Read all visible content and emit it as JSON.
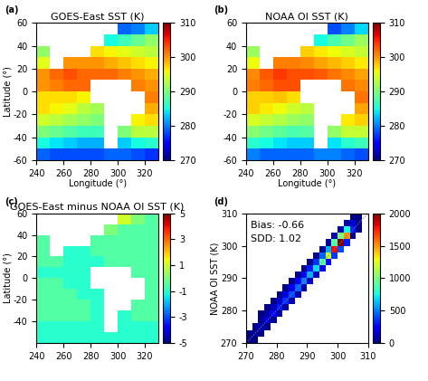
{
  "chart_data": [
    {
      "type": "heatmap",
      "panel_label": "(a)",
      "title": "GOES-East SST (K)",
      "x_label": "Longitude (°)",
      "y_label": "Latitude (°)",
      "xlim": [
        240,
        330
      ],
      "ylim": [
        -60,
        60
      ],
      "xticks": [
        240,
        260,
        280,
        300,
        320
      ],
      "yticks": [
        -60,
        -40,
        -20,
        0,
        20,
        40,
        60
      ],
      "tick_labels": true,
      "x_edges": [
        240,
        250,
        260,
        270,
        280,
        290,
        300,
        310,
        320,
        330
      ],
      "y_edges": [
        60,
        50,
        40,
        30,
        20,
        10,
        0,
        -10,
        -20,
        -30,
        -40,
        -50,
        -60
      ],
      "cells": [
        [
          null,
          null,
          null,
          null,
          null,
          null,
          279,
          280,
          283
        ],
        [
          null,
          null,
          null,
          null,
          null,
          285,
          287,
          289,
          291
        ],
        [
          291,
          null,
          null,
          null,
          297,
          296,
          295,
          294,
          293
        ],
        [
          295,
          null,
          300,
          300,
          300,
          299,
          298,
          297,
          296
        ],
        [
          300,
          302,
          303,
          302,
          302,
          302,
          301,
          300,
          299
        ],
        [
          300,
          301,
          302,
          302,
          null,
          null,
          null,
          301,
          300
        ],
        [
          297,
          297,
          297,
          296,
          null,
          null,
          null,
          null,
          301
        ],
        [
          297,
          296,
          295,
          293,
          292,
          null,
          null,
          null,
          299
        ],
        [
          294,
          293,
          292,
          291,
          290,
          null,
          null,
          296,
          297
        ],
        [
          290,
          289,
          288,
          287,
          287,
          null,
          290,
          293,
          293
        ],
        [
          285,
          284,
          283,
          282,
          282,
          null,
          283,
          285,
          286
        ],
        [
          279,
          278,
          278,
          278,
          278,
          279,
          279,
          278,
          277
        ]
      ],
      "colorbar_range": [
        270,
        310
      ],
      "colorbar_ticks": [
        270,
        280,
        290,
        300,
        310
      ]
    },
    {
      "type": "heatmap",
      "panel_label": "(b)",
      "title": "NOAA OI SST (K)",
      "x_label": "Longitude (°)",
      "xlim": [
        240,
        330
      ],
      "ylim": [
        -60,
        60
      ],
      "xticks": [
        240,
        260,
        280,
        300,
        320
      ],
      "yticks": [
        -60,
        -40,
        -20,
        0,
        20,
        40,
        60
      ],
      "tick_labels": true,
      "x_edges": [
        240,
        250,
        260,
        270,
        280,
        290,
        300,
        310,
        320,
        330
      ],
      "y_edges": [
        60,
        50,
        40,
        30,
        20,
        10,
        0,
        -10,
        -20,
        -30,
        -40,
        -50,
        -60
      ],
      "cells": [
        [
          null,
          null,
          null,
          null,
          null,
          null,
          278,
          280,
          283.5
        ],
        [
          null,
          null,
          null,
          null,
          null,
          285,
          287.5,
          289.5,
          291.5
        ],
        [
          291.5,
          null,
          null,
          null,
          297.5,
          296.5,
          295.5,
          294.5,
          293.5
        ],
        [
          295.5,
          null,
          301,
          301,
          300.5,
          299.5,
          298.5,
          297.5,
          296.5
        ],
        [
          300.5,
          302.5,
          304,
          303,
          303,
          302.5,
          301.5,
          300.5,
          299.5
        ],
        [
          301,
          302,
          303,
          303,
          null,
          null,
          null,
          301.5,
          300.5
        ],
        [
          297.5,
          297.5,
          298,
          297,
          null,
          null,
          null,
          null,
          301.5
        ],
        [
          297.5,
          296.5,
          295.5,
          294,
          293,
          null,
          null,
          null,
          299.5
        ],
        [
          294.5,
          293.5,
          292.5,
          291.5,
          291,
          null,
          null,
          296.5,
          297.5
        ],
        [
          290.5,
          289.5,
          288.5,
          287.5,
          288,
          null,
          291,
          293.5,
          293.5
        ],
        [
          286,
          285,
          284,
          283,
          283,
          null,
          284,
          286,
          287
        ],
        [
          280,
          279,
          279,
          279,
          279,
          280,
          280,
          279,
          278
        ]
      ],
      "colorbar_range": [
        270,
        310
      ],
      "colorbar_ticks": [
        270,
        280,
        290,
        300,
        310
      ]
    },
    {
      "type": "heatmap",
      "panel_label": "(c)",
      "title": "GOES-East minus NOAA OI SST (K)",
      "y_label": "Latitude (°)",
      "xlim": [
        240,
        330
      ],
      "ylim": [
        -60,
        60
      ],
      "xticks": [
        240,
        260,
        280,
        300,
        320
      ],
      "yticks": [
        -40,
        -20,
        0,
        20,
        40,
        60
      ],
      "tick_labels": true,
      "x_edges": [
        240,
        250,
        260,
        270,
        280,
        290,
        300,
        310,
        320,
        330
      ],
      "y_edges": [
        60,
        50,
        40,
        30,
        20,
        10,
        0,
        -10,
        -20,
        -30,
        -40,
        -50,
        -60
      ],
      "cells": [
        [
          null,
          null,
          null,
          null,
          null,
          null,
          1,
          0,
          -0.5
        ],
        [
          null,
          null,
          null,
          null,
          null,
          0,
          -0.5,
          -0.5,
          -0.5
        ],
        [
          -0.5,
          null,
          null,
          null,
          -0.5,
          -0.5,
          -0.5,
          -0.5,
          -0.5
        ],
        [
          -0.5,
          null,
          -1,
          -1,
          -0.5,
          -0.5,
          -0.5,
          -0.5,
          -0.5
        ],
        [
          -0.5,
          -0.5,
          -1,
          -1,
          -1,
          -0.5,
          -0.5,
          -0.5,
          -0.5
        ],
        [
          -1,
          -1,
          -1,
          -1,
          null,
          null,
          null,
          -0.5,
          -0.5
        ],
        [
          -0.5,
          -0.5,
          -1,
          -1,
          null,
          null,
          null,
          null,
          -0.5
        ],
        [
          -0.5,
          -0.5,
          -0.5,
          -1,
          -1,
          null,
          null,
          null,
          -0.5
        ],
        [
          -0.5,
          -0.5,
          -0.5,
          -0.5,
          -1,
          null,
          null,
          -0.5,
          -0.5
        ],
        [
          -0.5,
          -0.5,
          -0.5,
          -0.5,
          -1,
          null,
          -1,
          -0.5,
          -0.5
        ],
        [
          -1,
          -1,
          -1,
          -1,
          -1,
          null,
          -1,
          -1,
          -1
        ],
        [
          -1,
          -1,
          -1,
          -1,
          -1,
          -1,
          -1,
          -1,
          -1
        ]
      ],
      "colorbar_range": [
        -5,
        5
      ],
      "colorbar_ticks": [
        -5,
        -3,
        -1,
        1,
        3,
        5
      ]
    },
    {
      "type": "density",
      "panel_label": "(d)",
      "y_label": "NOAA OI SST (K)",
      "xlim": [
        270,
        310
      ],
      "ylim": [
        270,
        310
      ],
      "xticks": [
        270,
        280,
        290,
        300,
        310
      ],
      "yticks": [
        270,
        280,
        290,
        300,
        310
      ],
      "tick_labels": true,
      "annotations": [
        "Bias: -0.66",
        "SDD: 1.02"
      ],
      "x_edges": [
        270,
        272,
        274,
        276,
        278,
        280,
        282,
        284,
        286,
        288,
        290,
        292,
        294,
        296,
        298,
        300,
        302,
        304,
        306,
        308,
        310
      ],
      "y_edges": [
        270,
        272,
        274,
        276,
        278,
        280,
        282,
        284,
        286,
        288,
        290,
        292,
        294,
        296,
        298,
        300,
        302,
        304,
        306,
        308,
        310
      ],
      "cells": [
        [
          271,
          271,
          30
        ],
        [
          271,
          273,
          15
        ],
        [
          273,
          273,
          60
        ],
        [
          273,
          275,
          30
        ],
        [
          273,
          271,
          12
        ],
        [
          275,
          275,
          100
        ],
        [
          275,
          277,
          50
        ],
        [
          275,
          273,
          20
        ],
        [
          275,
          279,
          5
        ],
        [
          277,
          277,
          150
        ],
        [
          277,
          279,
          75
        ],
        [
          277,
          275,
          30
        ],
        [
          277,
          281,
          8
        ],
        [
          279,
          279,
          220
        ],
        [
          279,
          281,
          110
        ],
        [
          279,
          277,
          44
        ],
        [
          279,
          283,
          11
        ],
        [
          281,
          281,
          300
        ],
        [
          281,
          283,
          150
        ],
        [
          281,
          279,
          60
        ],
        [
          281,
          285,
          15
        ],
        [
          283,
          283,
          350
        ],
        [
          283,
          285,
          175
        ],
        [
          283,
          281,
          70
        ],
        [
          283,
          287,
          18
        ],
        [
          285,
          285,
          400
        ],
        [
          285,
          287,
          200
        ],
        [
          285,
          283,
          80
        ],
        [
          285,
          289,
          20
        ],
        [
          287,
          287,
          450
        ],
        [
          287,
          289,
          225
        ],
        [
          287,
          285,
          90
        ],
        [
          287,
          291,
          22
        ],
        [
          289,
          289,
          500
        ],
        [
          289,
          291,
          250
        ],
        [
          289,
          287,
          100
        ],
        [
          289,
          293,
          25
        ],
        [
          291,
          291,
          600
        ],
        [
          291,
          293,
          300
        ],
        [
          291,
          289,
          120
        ],
        [
          291,
          295,
          30
        ],
        [
          293,
          293,
          700
        ],
        [
          293,
          295,
          350
        ],
        [
          293,
          291,
          140
        ],
        [
          293,
          297,
          35
        ],
        [
          295,
          295,
          900
        ],
        [
          295,
          297,
          450
        ],
        [
          295,
          293,
          180
        ],
        [
          295,
          299,
          45
        ],
        [
          297,
          297,
          1200
        ],
        [
          297,
          299,
          600
        ],
        [
          297,
          295,
          240
        ],
        [
          297,
          301,
          60
        ],
        [
          299,
          299,
          1800
        ],
        [
          299,
          301,
          900
        ],
        [
          299,
          297,
          360
        ],
        [
          299,
          303,
          90
        ],
        [
          301,
          301,
          2000
        ],
        [
          301,
          303,
          1000
        ],
        [
          301,
          299,
          400
        ],
        [
          301,
          305,
          100
        ],
        [
          303,
          303,
          1500
        ],
        [
          303,
          305,
          750
        ],
        [
          303,
          301,
          300
        ],
        [
          303,
          307,
          75
        ],
        [
          305,
          305,
          300
        ],
        [
          305,
          307,
          150
        ],
        [
          305,
          303,
          60
        ],
        [
          305,
          309,
          15
        ],
        [
          307,
          307,
          20
        ],
        [
          307,
          309,
          10
        ],
        [
          307,
          305,
          4
        ]
      ],
      "colorbar_range": [
        0,
        2000
      ],
      "colorbar_ticks": [
        0,
        500,
        1000,
        1500,
        2000
      ]
    }
  ]
}
